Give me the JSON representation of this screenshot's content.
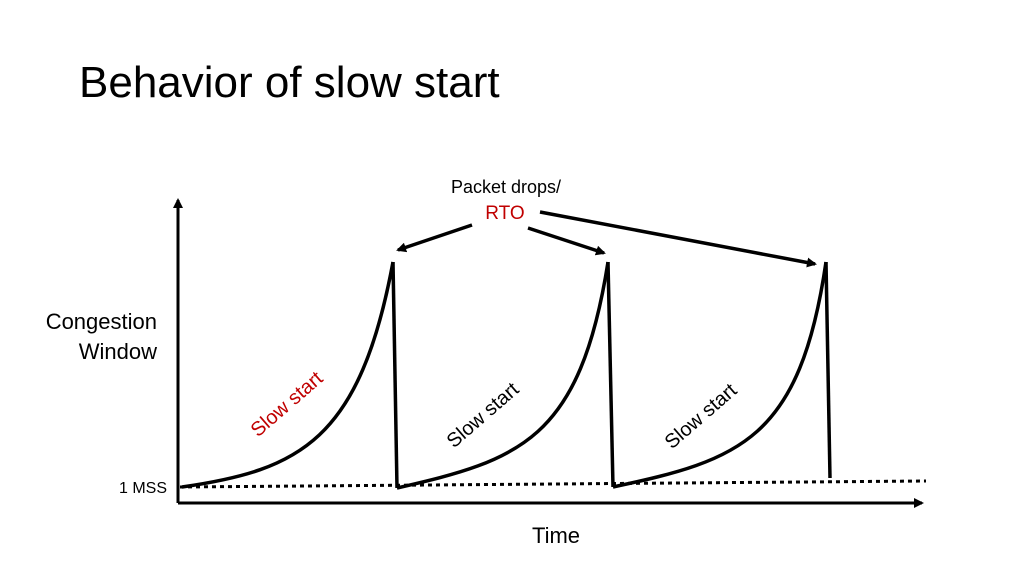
{
  "slide": {
    "title": "Behavior of slow start"
  },
  "diagram": {
    "y_axis_label_line1": "Congestion",
    "y_axis_label_line2": "Window",
    "x_axis_label": "Time",
    "baseline_label": "1 MSS",
    "annotation_line1": "Packet drops/",
    "annotation_line2": "RTO",
    "phase_labels": [
      "Slow start",
      "Slow start",
      "Slow start"
    ],
    "colors": {
      "accent": "#c00000",
      "ink": "#000000"
    }
  }
}
